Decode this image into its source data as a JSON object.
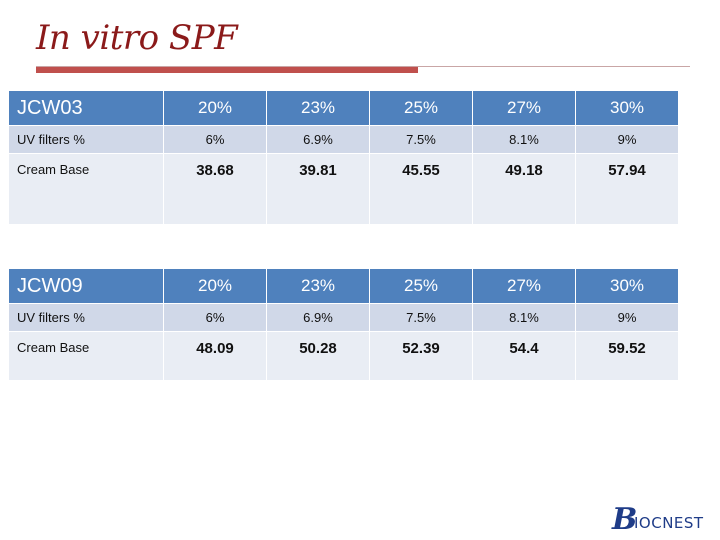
{
  "slide": {
    "title": "In vitro SPF"
  },
  "tables": [
    {
      "id": "JCW03",
      "percents": [
        "20%",
        "23%",
        "25%",
        "27%",
        "30%"
      ],
      "uv_label": "UV filters %",
      "uv_values": [
        "6%",
        "6.9%",
        "7.5%",
        "8.1%",
        "9%"
      ],
      "cream_label": "Cream Base",
      "cream_values": [
        "38.68",
        "39.81",
        "45.55",
        "49.18",
        "57.94"
      ]
    },
    {
      "id": "JCW09",
      "percents": [
        "20%",
        "23%",
        "25%",
        "27%",
        "30%"
      ],
      "uv_label": "UV filters %",
      "uv_values": [
        "6%",
        "6.9%",
        "7.5%",
        "8.1%",
        "9%"
      ],
      "cream_label": "Cream Base",
      "cream_values": [
        "48.09",
        "50.28",
        "52.39",
        "54.4",
        "59.52"
      ]
    }
  ],
  "logo": {
    "initial": "B",
    "text": "IOCNEST"
  },
  "colors": {
    "title": "#8b1a1a",
    "accent_bar": "#c0504d",
    "header": "#4f81bd",
    "row_dark": "#d0d8e8",
    "row_light": "#e9edf4"
  }
}
